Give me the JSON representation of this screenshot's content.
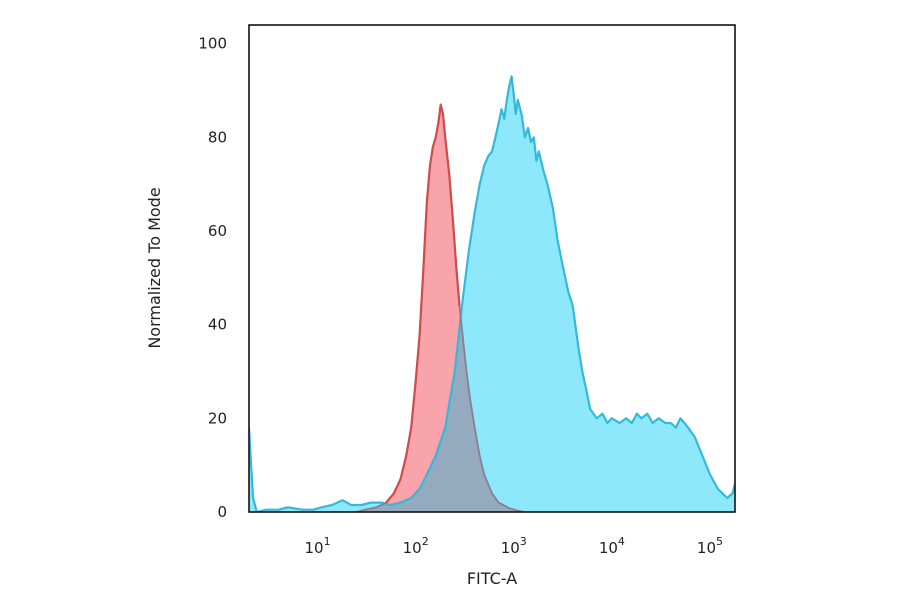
{
  "chart_data": {
    "type": "area",
    "title": "",
    "xlabel": "FITC-A",
    "ylabel": "Normalized To Mode",
    "x_scale": "log",
    "xlim": [
      2,
      180000
    ],
    "ylim": [
      0,
      104
    ],
    "grid": false,
    "legend": "none",
    "x_ticks": [
      {
        "value": 10,
        "base": "10",
        "exp": "1"
      },
      {
        "value": 100,
        "base": "10",
        "exp": "2"
      },
      {
        "value": 1000,
        "base": "10",
        "exp": "3"
      },
      {
        "value": 10000,
        "base": "10",
        "exp": "4"
      },
      {
        "value": 100000,
        "base": "10",
        "exp": "5"
      }
    ],
    "y_ticks": [
      {
        "value": 0,
        "label": "0"
      },
      {
        "value": 20,
        "label": "20"
      },
      {
        "value": 40,
        "label": "40"
      },
      {
        "value": 60,
        "label": "60"
      },
      {
        "value": 80,
        "label": "80"
      },
      {
        "value": 100,
        "label": "100"
      }
    ],
    "series": [
      {
        "fill": "#8ee8fb",
        "stroke": "#36b8d8",
        "x": [
          2,
          2.1,
          2.2,
          2.4,
          3,
          4,
          5,
          7,
          9,
          11,
          14,
          18,
          22,
          28,
          35,
          45,
          55,
          70,
          90,
          110,
          130,
          160,
          200,
          250,
          300,
          350,
          400,
          450,
          500,
          550,
          600,
          650,
          700,
          750,
          800,
          850,
          900,
          950,
          1000,
          1050,
          1100,
          1200,
          1300,
          1400,
          1500,
          1600,
          1700,
          1800,
          2000,
          2200,
          2500,
          2800,
          3200,
          3600,
          4000,
          4500,
          5000,
          5500,
          6000,
          7000,
          8000,
          9000,
          10000,
          12000,
          14000,
          16000,
          18000,
          20000,
          23000,
          26000,
          30000,
          35000,
          40000,
          45000,
          50000,
          55000,
          60000,
          70000,
          80000,
          100000,
          120000,
          150000,
          170000,
          180000
        ],
        "y": [
          18,
          10,
          3,
          0,
          0.5,
          0.5,
          1,
          0.5,
          0.5,
          1,
          1.5,
          2.5,
          1.5,
          1.5,
          2,
          2,
          1.5,
          2,
          3,
          5,
          8,
          12,
          18,
          30,
          45,
          56,
          64,
          70,
          74,
          76,
          77,
          80,
          83,
          86,
          84,
          88,
          91,
          93,
          89,
          85,
          88,
          85,
          80,
          82,
          79,
          80,
          75,
          77,
          73,
          70,
          65,
          58,
          52,
          47,
          44,
          36,
          30,
          26,
          22,
          20,
          21,
          19,
          20,
          19,
          20,
          19,
          21,
          20,
          21,
          19,
          20,
          19,
          19,
          18,
          20,
          19,
          18,
          16,
          13,
          8,
          5,
          3,
          4,
          6
        ]
      },
      {
        "fill": "#f9a3ab",
        "stroke": "#d04c4c",
        "x": [
          25,
          30,
          40,
          50,
          60,
          70,
          80,
          90,
          100,
          110,
          120,
          130,
          140,
          150,
          160,
          170,
          180,
          190,
          200,
          220,
          240,
          260,
          280,
          300,
          330,
          360,
          400,
          450,
          500,
          600,
          700,
          900,
          1100,
          1300
        ],
        "y": [
          0,
          0.5,
          1,
          2,
          4,
          7,
          12,
          18,
          28,
          38,
          52,
          66,
          74,
          78,
          80,
          83,
          87,
          85,
          80,
          72,
          62,
          52,
          44,
          38,
          30,
          24,
          18,
          12,
          8,
          4,
          2,
          0.8,
          0.3,
          0
        ]
      }
    ],
    "overlap_fill": "#94abbf",
    "overlap_stroke": "#8a7f92"
  }
}
